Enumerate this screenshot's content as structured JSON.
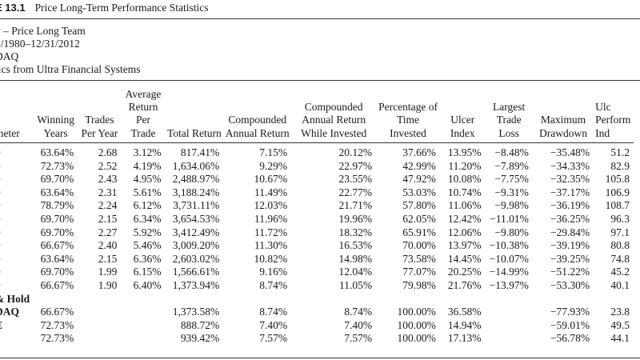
{
  "table_label": "E 13.1",
  "table_title": "Price Long-Term Performance Statistics",
  "meta_lines": [
    "v – Price Long Team",
    "1/1980–12/31/2012",
    "DAQ",
    "tics from Ultra Financial Systems"
  ],
  "columns": [
    "meter",
    "Winning Years",
    "Trades Per Year",
    "Average Return Per Trade",
    "Total Return",
    "Compounded Annual Return",
    "Compounded Annual Return While Invested",
    "Percentage of Time Invested",
    "Ulcer Index",
    "Largest Trade Loss",
    "Maximum Drawdown",
    "Ulc Perform Ind"
  ],
  "rows": [
    [
      "0",
      "63.64%",
      "2.68",
      "3.12%",
      "817.41%",
      "7.15%",
      "20.12%",
      "37.66%",
      "13.95%",
      "−8.48%",
      "−35.48%",
      "51.2"
    ],
    [
      "0",
      "72.73%",
      "2.52",
      "4.19%",
      "1,634.06%",
      "9.29%",
      "22.97%",
      "42.99%",
      "11.20%",
      "−7.89%",
      "−34.33%",
      "82.9"
    ],
    [
      "0",
      "69.70%",
      "2.43",
      "4.95%",
      "2,488.97%",
      "10.67%",
      "23.55%",
      "47.92%",
      "10.08%",
      "−7.75%",
      "−32.35%",
      "105.8"
    ],
    [
      "0",
      "63.64%",
      "2.31",
      "5.61%",
      "3,188.24%",
      "11.49%",
      "22.77%",
      "53.03%",
      "10.74%",
      "−9.31%",
      "−37.17%",
      "106.9"
    ],
    [
      "0",
      "78.79%",
      "2.24",
      "6.12%",
      "3,731.11%",
      "12.03%",
      "21.71%",
      "57.80%",
      "11.06%",
      "−9.98%",
      "−36.19%",
      "108.7"
    ],
    [
      "0",
      "69.70%",
      "2.15",
      "6.34%",
      "3,654.53%",
      "11.96%",
      "19.96%",
      "62.05%",
      "12.42%",
      "−11.01%",
      "−36.25%",
      "96.3"
    ],
    [
      "0",
      "69.70%",
      "2.27",
      "5.92%",
      "3,412.49%",
      "11.72%",
      "18.32%",
      "65.91%",
      "12.06%",
      "−9.80%",
      "−29.84%",
      "97.1"
    ],
    [
      "0",
      "66.67%",
      "2.40",
      "5.46%",
      "3,009.20%",
      "11.30%",
      "16.53%",
      "70.00%",
      "13.97%",
      "−10.38%",
      "−39.19%",
      "80.8"
    ],
    [
      "0",
      "63.64%",
      "2.15",
      "6.36%",
      "2,603.02%",
      "10.82%",
      "14.98%",
      "73.58%",
      "14.45%",
      "−10.07%",
      "−39.25%",
      "74.8"
    ],
    [
      "0",
      "69.70%",
      "1.99",
      "6.15%",
      "1,566.61%",
      "9.16%",
      "12.04%",
      "77.07%",
      "20.25%",
      "−14.99%",
      "−51.22%",
      "45.2"
    ],
    [
      "0",
      "66.67%",
      "1.90",
      "6.40%",
      "1,373.94%",
      "8.74%",
      "11.05%",
      "79.98%",
      "21.76%",
      "−13.97%",
      "−53.30%",
      "40.1"
    ]
  ],
  "section_label": "& Hold",
  "benchmark_rows": [
    [
      "DAQ",
      "66.67%",
      "",
      "",
      "1,373.58%",
      "8.74%",
      "8.74%",
      "100.00%",
      "36.58%",
      "",
      "−77.93%",
      "23.8"
    ],
    [
      "E",
      "72.73%",
      "",
      "",
      "888.72%",
      "7.40%",
      "7.40%",
      "100.00%",
      "14.94%",
      "",
      "−59.01%",
      "49.5"
    ],
    [
      "",
      "72.73%",
      "",
      "",
      "939.42%",
      "7.57%",
      "7.57%",
      "100.00%",
      "17.13%",
      "",
      "−56.78%",
      "44.1"
    ]
  ]
}
